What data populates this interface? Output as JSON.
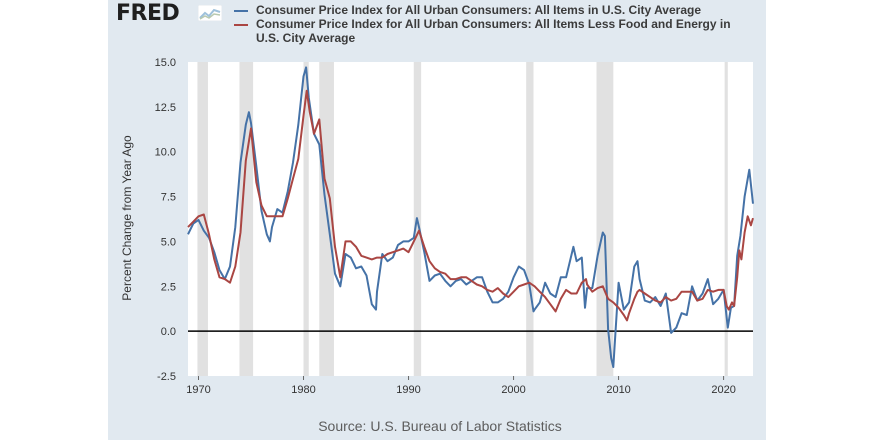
{
  "header": {
    "logo_text": "FRED",
    "logo_icon": "line-graph-icon"
  },
  "legend": [
    {
      "label": "Consumer Price Index for All Urban Consumers: All Items in U.S. City Average",
      "color": "#4572a7"
    },
    {
      "label": "Consumer Price Index for All Urban Consumers: All Items Less Food and Energy in U.S. City Average",
      "color": "#aa4643"
    }
  ],
  "source": "Source: U.S. Bureau of Labor Statistics",
  "chart_data": {
    "type": "line",
    "ylabel": "Percent Change from Year Ago",
    "xlabel": "",
    "xlim": [
      1969.0,
      2022.8
    ],
    "ylim": [
      -2.5,
      15.0
    ],
    "yticks": [
      -2.5,
      0.0,
      2.5,
      5.0,
      7.5,
      10.0,
      12.5,
      15.0
    ],
    "xticks": [
      1970,
      1980,
      1990,
      2000,
      2010,
      2020
    ],
    "grid": false,
    "zero_line": true,
    "recessions": [
      [
        1969.9,
        1970.9
      ],
      [
        1973.9,
        1975.2
      ],
      [
        1980.0,
        1980.5
      ],
      [
        1981.5,
        1982.9
      ],
      [
        1990.5,
        1991.2
      ],
      [
        2001.2,
        2001.9
      ],
      [
        2007.9,
        2009.5
      ],
      [
        2020.1,
        2020.4
      ]
    ],
    "series": [
      {
        "name": "Consumer Price Index for All Urban Consumers: All Items in U.S. City Average",
        "color": "#4572a7",
        "points": [
          [
            1969.0,
            5.4
          ],
          [
            1969.5,
            6.0
          ],
          [
            1970.0,
            6.2
          ],
          [
            1970.5,
            5.6
          ],
          [
            1971.0,
            5.2
          ],
          [
            1971.5,
            4.4
          ],
          [
            1972.0,
            3.4
          ],
          [
            1972.5,
            2.9
          ],
          [
            1973.0,
            3.6
          ],
          [
            1973.5,
            5.8
          ],
          [
            1974.0,
            9.4
          ],
          [
            1974.5,
            11.5
          ],
          [
            1974.8,
            12.2
          ],
          [
            1975.0,
            11.6
          ],
          [
            1975.5,
            9.2
          ],
          [
            1976.0,
            6.7
          ],
          [
            1976.5,
            5.4
          ],
          [
            1976.8,
            5.0
          ],
          [
            1977.0,
            5.8
          ],
          [
            1977.5,
            6.8
          ],
          [
            1978.0,
            6.6
          ],
          [
            1978.5,
            7.8
          ],
          [
            1979.0,
            9.4
          ],
          [
            1979.5,
            11.5
          ],
          [
            1980.0,
            14.2
          ],
          [
            1980.25,
            14.7
          ],
          [
            1980.5,
            13.0
          ],
          [
            1981.0,
            11.0
          ],
          [
            1981.5,
            10.4
          ],
          [
            1982.0,
            7.6
          ],
          [
            1982.5,
            5.4
          ],
          [
            1983.0,
            3.2
          ],
          [
            1983.5,
            2.5
          ],
          [
            1984.0,
            4.3
          ],
          [
            1984.5,
            4.1
          ],
          [
            1985.0,
            3.5
          ],
          [
            1985.5,
            3.6
          ],
          [
            1986.0,
            3.1
          ],
          [
            1986.5,
            1.5
          ],
          [
            1986.9,
            1.2
          ],
          [
            1987.0,
            2.2
          ],
          [
            1987.5,
            4.3
          ],
          [
            1988.0,
            3.9
          ],
          [
            1988.5,
            4.1
          ],
          [
            1989.0,
            4.8
          ],
          [
            1989.5,
            5.0
          ],
          [
            1990.0,
            5.0
          ],
          [
            1990.5,
            5.2
          ],
          [
            1990.8,
            6.3
          ],
          [
            1991.0,
            5.8
          ],
          [
            1991.5,
            4.4
          ],
          [
            1992.0,
            2.8
          ],
          [
            1992.5,
            3.1
          ],
          [
            1993.0,
            3.2
          ],
          [
            1993.5,
            2.8
          ],
          [
            1994.0,
            2.5
          ],
          [
            1994.5,
            2.8
          ],
          [
            1995.0,
            2.9
          ],
          [
            1995.5,
            2.6
          ],
          [
            1996.0,
            2.8
          ],
          [
            1996.5,
            3.0
          ],
          [
            1997.0,
            3.0
          ],
          [
            1997.5,
            2.2
          ],
          [
            1998.0,
            1.6
          ],
          [
            1998.5,
            1.6
          ],
          [
            1999.0,
            1.8
          ],
          [
            1999.5,
            2.2
          ],
          [
            2000.0,
            3.0
          ],
          [
            2000.5,
            3.6
          ],
          [
            2001.0,
            3.4
          ],
          [
            2001.5,
            2.6
          ],
          [
            2001.9,
            1.1
          ],
          [
            2002.0,
            1.2
          ],
          [
            2002.5,
            1.6
          ],
          [
            2003.0,
            2.7
          ],
          [
            2003.5,
            2.1
          ],
          [
            2004.0,
            1.9
          ],
          [
            2004.5,
            3.0
          ],
          [
            2005.0,
            3.0
          ],
          [
            2005.7,
            4.7
          ],
          [
            2006.0,
            3.9
          ],
          [
            2006.5,
            4.1
          ],
          [
            2006.8,
            1.3
          ],
          [
            2007.0,
            2.4
          ],
          [
            2007.5,
            2.4
          ],
          [
            2008.0,
            4.2
          ],
          [
            2008.5,
            5.5
          ],
          [
            2008.7,
            5.3
          ],
          [
            2009.0,
            0.1
          ],
          [
            2009.3,
            -1.5
          ],
          [
            2009.5,
            -2.0
          ],
          [
            2010.0,
            2.7
          ],
          [
            2010.5,
            1.2
          ],
          [
            2011.0,
            1.6
          ],
          [
            2011.5,
            3.6
          ],
          [
            2011.8,
            3.9
          ],
          [
            2012.0,
            2.9
          ],
          [
            2012.5,
            1.7
          ],
          [
            2013.0,
            1.6
          ],
          [
            2013.5,
            1.9
          ],
          [
            2014.0,
            1.4
          ],
          [
            2014.5,
            2.1
          ],
          [
            2015.0,
            -0.1
          ],
          [
            2015.5,
            0.2
          ],
          [
            2016.0,
            1.0
          ],
          [
            2016.5,
            0.9
          ],
          [
            2017.0,
            2.5
          ],
          [
            2017.5,
            1.7
          ],
          [
            2018.0,
            2.1
          ],
          [
            2018.5,
            2.9
          ],
          [
            2019.0,
            1.5
          ],
          [
            2019.5,
            1.8
          ],
          [
            2020.0,
            2.3
          ],
          [
            2020.4,
            0.2
          ],
          [
            2020.7,
            1.3
          ],
          [
            2021.0,
            1.4
          ],
          [
            2021.3,
            4.2
          ],
          [
            2021.6,
            5.3
          ],
          [
            2022.0,
            7.5
          ],
          [
            2022.45,
            9.0
          ],
          [
            2022.8,
            7.1
          ]
        ]
      },
      {
        "name": "Consumer Price Index for All Urban Consumers: All Items Less Food and Energy in U.S. City Average",
        "color": "#aa4643",
        "points": [
          [
            1969.0,
            5.8
          ],
          [
            1969.5,
            6.1
          ],
          [
            1970.0,
            6.4
          ],
          [
            1970.5,
            6.5
          ],
          [
            1971.0,
            5.4
          ],
          [
            1971.5,
            4.0
          ],
          [
            1972.0,
            3.0
          ],
          [
            1972.5,
            2.9
          ],
          [
            1973.0,
            2.7
          ],
          [
            1973.5,
            3.6
          ],
          [
            1974.0,
            5.5
          ],
          [
            1974.5,
            9.5
          ],
          [
            1975.0,
            11.3
          ],
          [
            1975.5,
            8.3
          ],
          [
            1976.0,
            7.0
          ],
          [
            1976.5,
            6.4
          ],
          [
            1977.0,
            6.4
          ],
          [
            1977.5,
            6.4
          ],
          [
            1978.0,
            6.4
          ],
          [
            1978.5,
            7.4
          ],
          [
            1979.0,
            8.5
          ],
          [
            1979.5,
            9.6
          ],
          [
            1980.0,
            12.0
          ],
          [
            1980.3,
            13.4
          ],
          [
            1980.6,
            12.2
          ],
          [
            1981.0,
            11.0
          ],
          [
            1981.5,
            11.8
          ],
          [
            1982.0,
            8.5
          ],
          [
            1982.5,
            7.4
          ],
          [
            1983.0,
            4.7
          ],
          [
            1983.5,
            3.0
          ],
          [
            1984.0,
            5.0
          ],
          [
            1984.5,
            5.0
          ],
          [
            1985.0,
            4.7
          ],
          [
            1985.5,
            4.2
          ],
          [
            1986.0,
            4.1
          ],
          [
            1986.5,
            4.0
          ],
          [
            1987.0,
            4.1
          ],
          [
            1987.5,
            4.1
          ],
          [
            1988.0,
            4.3
          ],
          [
            1988.5,
            4.4
          ],
          [
            1989.0,
            4.5
          ],
          [
            1989.5,
            4.6
          ],
          [
            1990.0,
            4.4
          ],
          [
            1990.5,
            5.0
          ],
          [
            1991.0,
            5.6
          ],
          [
            1991.5,
            4.7
          ],
          [
            1992.0,
            3.9
          ],
          [
            1992.5,
            3.5
          ],
          [
            1993.0,
            3.3
          ],
          [
            1993.5,
            3.2
          ],
          [
            1994.0,
            2.9
          ],
          [
            1994.5,
            2.9
          ],
          [
            1995.0,
            3.0
          ],
          [
            1995.5,
            3.0
          ],
          [
            1996.0,
            2.8
          ],
          [
            1996.5,
            2.6
          ],
          [
            1997.0,
            2.5
          ],
          [
            1997.5,
            2.3
          ],
          [
            1998.0,
            2.2
          ],
          [
            1998.5,
            2.4
          ],
          [
            1999.0,
            2.1
          ],
          [
            1999.5,
            1.9
          ],
          [
            2000.0,
            2.2
          ],
          [
            2000.5,
            2.5
          ],
          [
            2001.0,
            2.6
          ],
          [
            2001.5,
            2.7
          ],
          [
            2002.0,
            2.5
          ],
          [
            2002.5,
            2.2
          ],
          [
            2003.0,
            1.9
          ],
          [
            2003.5,
            1.5
          ],
          [
            2004.0,
            1.1
          ],
          [
            2004.5,
            1.8
          ],
          [
            2005.0,
            2.3
          ],
          [
            2005.5,
            2.1
          ],
          [
            2006.0,
            2.1
          ],
          [
            2006.5,
            2.7
          ],
          [
            2006.9,
            2.9
          ],
          [
            2007.0,
            2.6
          ],
          [
            2007.5,
            2.2
          ],
          [
            2008.0,
            2.4
          ],
          [
            2008.5,
            2.5
          ],
          [
            2009.0,
            1.8
          ],
          [
            2009.5,
            1.6
          ],
          [
            2010.0,
            1.3
          ],
          [
            2010.5,
            0.9
          ],
          [
            2010.8,
            0.6
          ],
          [
            2011.0,
            1.0
          ],
          [
            2011.5,
            1.8
          ],
          [
            2011.8,
            2.2
          ],
          [
            2012.0,
            2.3
          ],
          [
            2012.5,
            2.1
          ],
          [
            2013.0,
            1.9
          ],
          [
            2013.5,
            1.7
          ],
          [
            2014.0,
            1.6
          ],
          [
            2014.5,
            1.9
          ],
          [
            2015.0,
            1.7
          ],
          [
            2015.5,
            1.8
          ],
          [
            2016.0,
            2.2
          ],
          [
            2016.5,
            2.2
          ],
          [
            2017.0,
            2.2
          ],
          [
            2017.5,
            1.7
          ],
          [
            2018.0,
            1.8
          ],
          [
            2018.5,
            2.3
          ],
          [
            2019.0,
            2.2
          ],
          [
            2019.5,
            2.3
          ],
          [
            2020.0,
            2.3
          ],
          [
            2020.3,
            1.4
          ],
          [
            2020.5,
            1.2
          ],
          [
            2020.8,
            1.6
          ],
          [
            2021.0,
            1.4
          ],
          [
            2021.3,
            3.0
          ],
          [
            2021.5,
            4.5
          ],
          [
            2021.7,
            4.0
          ],
          [
            2022.0,
            5.5
          ],
          [
            2022.3,
            6.4
          ],
          [
            2022.6,
            5.9
          ],
          [
            2022.8,
            6.3
          ]
        ]
      }
    ]
  }
}
